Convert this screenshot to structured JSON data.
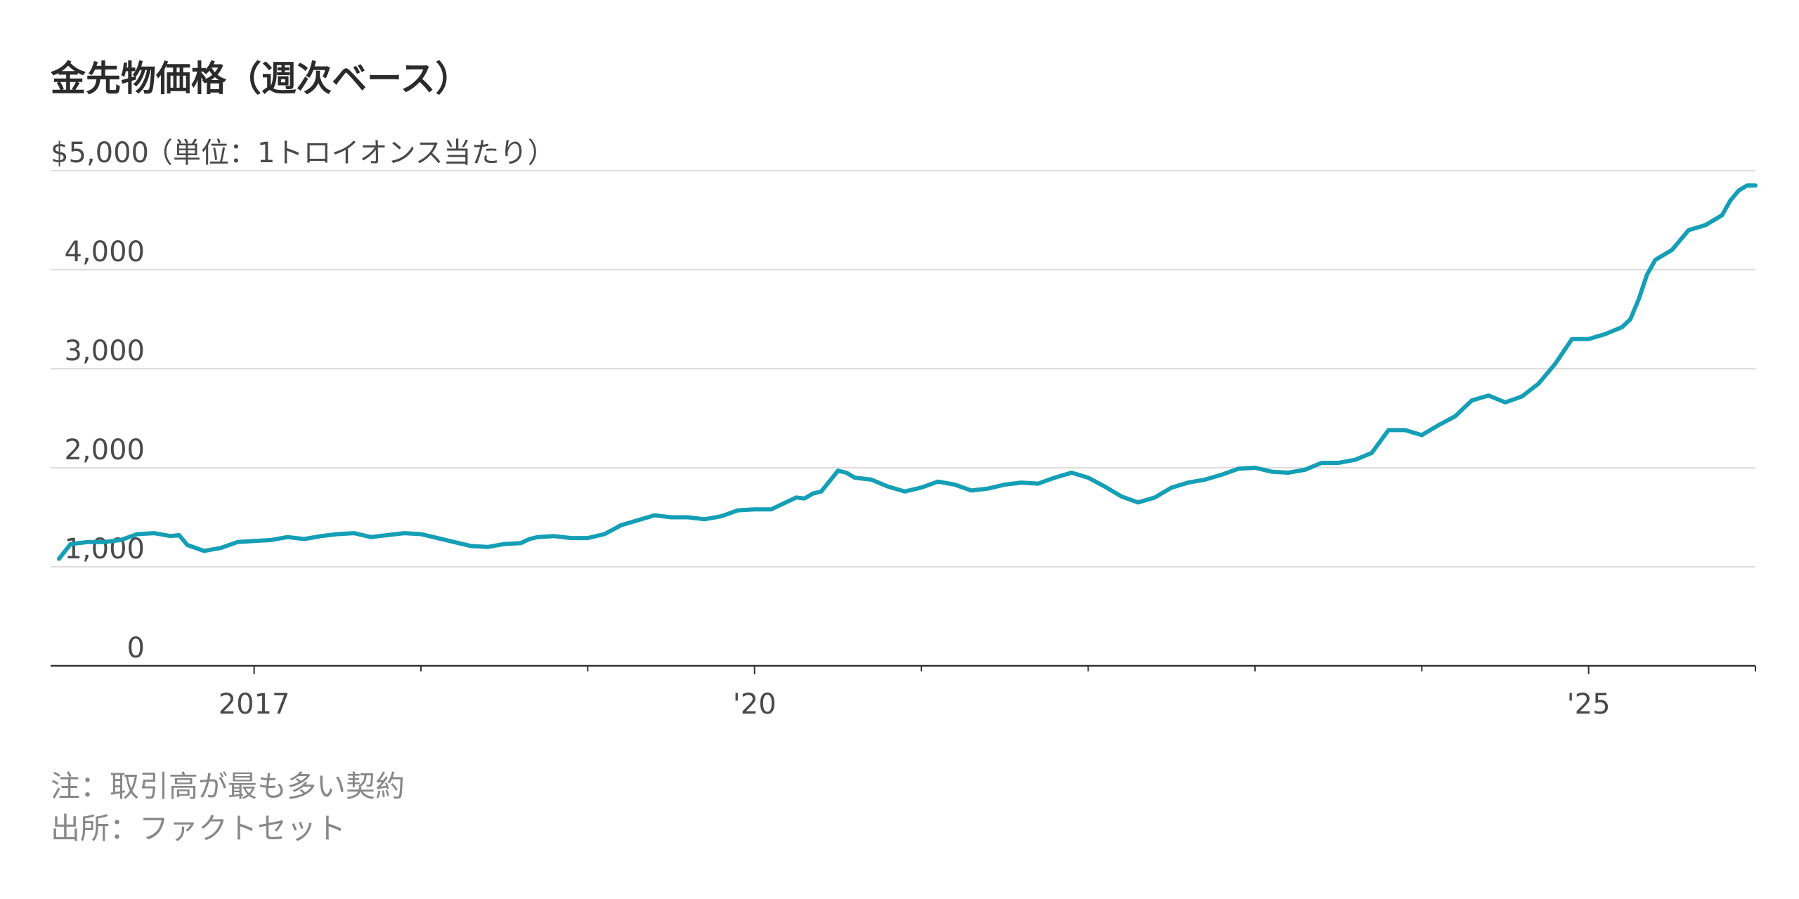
{
  "title": "金先物価格（週次ベース）",
  "notes": {
    "note": "注：取引高が最も多い契約",
    "source": "出所：ファクトセット"
  },
  "colors": {
    "line": "#159fb6",
    "grid": "#dddddd",
    "axis": "#333333"
  },
  "chart_data": {
    "type": "line",
    "title": "金先物価格（週次ベース）",
    "y_unit_label": "（単位：1トロイオンス当たり）",
    "ylim": [
      0,
      5000
    ],
    "yticks": [
      {
        "value": 5000,
        "label": "$5,000"
      },
      {
        "value": 4000,
        "label": "4,000"
      },
      {
        "value": 3000,
        "label": "3,000"
      },
      {
        "value": 2000,
        "label": "2,000"
      },
      {
        "value": 1000,
        "label": "1,000"
      },
      {
        "value": 0,
        "label": "0"
      }
    ],
    "xlim": [
      2015.78,
      2026.0
    ],
    "xticks": [
      {
        "value": 2017.0,
        "label": "2017"
      },
      {
        "value": 2020.0,
        "label": "'20"
      },
      {
        "value": 2025.0,
        "label": "'25"
      }
    ],
    "minor_xticks": [
      2018.0,
      2019.0,
      2021.0,
      2022.0,
      2023.0,
      2024.0,
      2026.0
    ],
    "grid": true,
    "series": [
      {
        "x": [
          2015.83,
          2015.9,
          2016.0,
          2016.1,
          2016.2,
          2016.3,
          2016.4,
          2016.5,
          2016.55,
          2016.6,
          2016.7,
          2016.8,
          2016.9,
          2017.0,
          2017.1,
          2017.2,
          2017.3,
          2017.4,
          2017.5,
          2017.6,
          2017.7,
          2017.8,
          2017.9,
          2018.0,
          2018.1,
          2018.2,
          2018.3,
          2018.4,
          2018.5,
          2018.6,
          2018.65,
          2018.7,
          2018.8,
          2018.9,
          2019.0,
          2019.1,
          2019.2,
          2019.3,
          2019.4,
          2019.5,
          2019.6,
          2019.7,
          2019.8,
          2019.9,
          2020.0,
          2020.1,
          2020.2,
          2020.25,
          2020.3,
          2020.35,
          2020.4,
          2020.5,
          2020.55,
          2020.6,
          2020.7,
          2020.8,
          2020.9,
          2021.0,
          2021.1,
          2021.2,
          2021.3,
          2021.4,
          2021.5,
          2021.6,
          2021.7,
          2021.8,
          2021.9,
          2022.0,
          2022.1,
          2022.2,
          2022.3,
          2022.4,
          2022.5,
          2022.6,
          2022.7,
          2022.8,
          2022.9,
          2023.0,
          2023.1,
          2023.2,
          2023.3,
          2023.4,
          2023.5,
          2023.6,
          2023.7,
          2023.8,
          2023.9,
          2024.0,
          2024.1,
          2024.2,
          2024.3,
          2024.4,
          2024.5,
          2024.6,
          2024.7,
          2024.8,
          2024.9,
          2025.0,
          2025.1,
          2025.2,
          2025.25,
          2025.3,
          2025.35,
          2025.4,
          2025.5,
          2025.6,
          2025.7,
          2025.8,
          2025.85,
          2025.9,
          2025.95,
          2026.0
        ],
        "y": [
          1080,
          1230,
          1250,
          1250,
          1270,
          1330,
          1340,
          1310,
          1320,
          1220,
          1160,
          1190,
          1250,
          1260,
          1270,
          1300,
          1280,
          1310,
          1330,
          1340,
          1300,
          1320,
          1340,
          1330,
          1290,
          1250,
          1210,
          1200,
          1230,
          1240,
          1280,
          1300,
          1310,
          1290,
          1290,
          1330,
          1420,
          1470,
          1520,
          1500,
          1500,
          1480,
          1510,
          1570,
          1580,
          1580,
          1660,
          1700,
          1690,
          1740,
          1760,
          1970,
          1950,
          1900,
          1880,
          1810,
          1760,
          1800,
          1860,
          1830,
          1770,
          1790,
          1830,
          1850,
          1840,
          1900,
          1950,
          1900,
          1810,
          1710,
          1650,
          1700,
          1800,
          1850,
          1880,
          1930,
          1990,
          2000,
          1960,
          1950,
          1980,
          2050,
          2050,
          2080,
          2150,
          2380,
          2380,
          2330,
          2430,
          2520,
          2680,
          2730,
          2660,
          2720,
          2850,
          3050,
          3300,
          3300,
          3350,
          3420,
          3500,
          3700,
          3950,
          4100,
          4200,
          4400,
          4450,
          4550,
          4700,
          4800,
          4850,
          4850
        ]
      }
    ]
  }
}
